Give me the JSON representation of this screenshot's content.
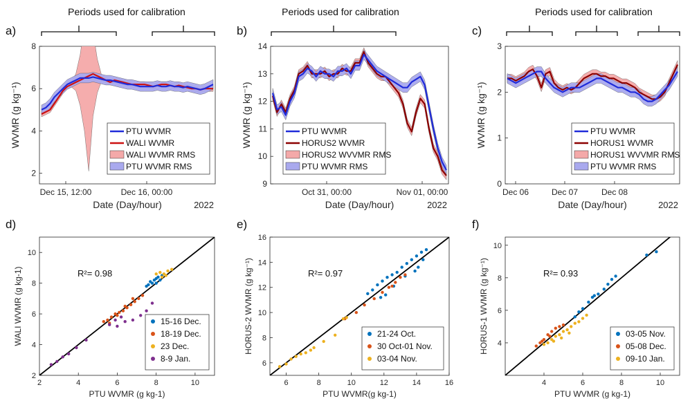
{
  "chart_data": [
    {
      "panel": "a)",
      "type": "line",
      "annotation": "Periods used for calibration",
      "ylabel": "WVMR (g kg⁻¹)",
      "xlabel": "Date (Day/hour)",
      "year": "2022",
      "ylim": [
        1.5,
        8
      ],
      "yticks": [
        "2",
        "4",
        "6",
        "8"
      ],
      "xticks": [
        "Dec 15, 12:00",
        "Dec 16, 00:00"
      ],
      "legend": [
        "PTU WVMR",
        "WALI WVMR",
        "WALI WVMR RMS",
        "PTU WVMR RMS"
      ],
      "colors": {
        "ptu": "#1f2bd9",
        "inst": "#cc1111",
        "inst_rms": "#f4a9a9",
        "ptu_rms": "#a9a9ee"
      },
      "x": [
        0,
        1,
        2,
        3,
        4,
        5,
        6,
        7,
        8,
        9,
        10,
        11,
        12,
        13,
        14,
        15,
        16,
        17,
        18,
        19,
        20,
        21,
        22,
        23,
        24,
        25,
        26,
        27,
        28,
        29,
        30,
        31,
        32,
        33,
        34,
        35,
        36,
        37,
        38,
        39,
        40
      ],
      "series": [
        {
          "name": "PTU WVMR",
          "values": [
            5.0,
            5.1,
            5.3,
            5.6,
            5.8,
            6.0,
            6.2,
            6.3,
            6.4,
            6.5,
            6.5,
            6.5,
            6.55,
            6.5,
            6.45,
            6.4,
            6.4,
            6.35,
            6.3,
            6.25,
            6.2,
            6.2,
            6.15,
            6.1,
            6.1,
            6.1,
            6.1,
            6.15,
            6.1,
            6.1,
            6.15,
            6.1,
            6.1,
            6.05,
            6.1,
            6.05,
            6.0,
            5.95,
            6.0,
            6.1,
            6.2
          ]
        },
        {
          "name": "WALI WVMR",
          "values": [
            4.8,
            4.9,
            5.0,
            5.3,
            5.6,
            5.9,
            6.1,
            6.2,
            6.3,
            6.4,
            6.5,
            6.6,
            6.7,
            6.6,
            6.5,
            6.4,
            6.3,
            6.4,
            6.35,
            6.3,
            6.25,
            6.2,
            6.2,
            6.2,
            6.2,
            6.15,
            6.1,
            6.15,
            6.2,
            6.2,
            6.15,
            6.1,
            6.15,
            6.1,
            6.05,
            6.0,
            6.0,
            5.95,
            6.0,
            6.0,
            6.0
          ]
        }
      ]
    },
    {
      "panel": "b)",
      "type": "line",
      "annotation": "Periods used for calibration",
      "ylabel": "WVMR (g kg⁻¹)",
      "xlabel": "Date (Day/hour)",
      "year": "2022",
      "ylim": [
        9,
        14
      ],
      "yticks": [
        "9",
        "10",
        "11",
        "12",
        "13",
        "14"
      ],
      "xticks": [
        "Oct 31, 00:00",
        "Nov 01, 00:00"
      ],
      "legend": [
        "PTU WVMR",
        "HORUS2 WVMR",
        "HORUS2 WVVMR RMS",
        "PTU WVMR RMS"
      ],
      "colors": {
        "ptu": "#1f2bd9",
        "inst": "#8b0000",
        "inst_rms": "#f4a9a9",
        "ptu_rms": "#a9a9ee"
      },
      "x": [
        0,
        1,
        2,
        3,
        4,
        5,
        6,
        7,
        8,
        9,
        10,
        11,
        12,
        13,
        14,
        15,
        16,
        17,
        18,
        19,
        20,
        21,
        22,
        23,
        24,
        25,
        26,
        27,
        28,
        29,
        30,
        31,
        32,
        33,
        34,
        35,
        36,
        37,
        38,
        39,
        40
      ],
      "series": [
        {
          "name": "PTU WVMR",
          "values": [
            12.3,
            11.7,
            11.8,
            11.5,
            12.0,
            12.3,
            12.9,
            13.0,
            13.2,
            13.1,
            12.9,
            13.1,
            13.0,
            13.0,
            12.9,
            13.1,
            13.1,
            13.2,
            13.0,
            13.3,
            13.3,
            13.7,
            13.5,
            13.3,
            13.1,
            13.0,
            12.9,
            12.8,
            12.7,
            12.6,
            12.5,
            12.5,
            12.7,
            12.8,
            12.9,
            12.6,
            11.8,
            11.0,
            10.3,
            9.8,
            9.5
          ]
        },
        {
          "name": "HORUS2 WVMR",
          "values": [
            12.2,
            11.6,
            11.9,
            11.6,
            12.1,
            12.4,
            13.0,
            13.1,
            13.3,
            13.0,
            13.0,
            13.0,
            13.1,
            12.9,
            13.0,
            13.0,
            13.2,
            13.1,
            13.1,
            13.4,
            13.4,
            13.8,
            13.4,
            13.2,
            13.0,
            12.9,
            12.9,
            12.7,
            12.5,
            12.3,
            11.9,
            11.2,
            10.9,
            11.6,
            12.1,
            11.9,
            11.0,
            10.3,
            10.0,
            9.5,
            9.3
          ]
        }
      ]
    },
    {
      "panel": "c)",
      "type": "line",
      "annotation": "Periods used for calibration",
      "ylabel": "WVMR (g kg⁻¹)",
      "xlabel": "Date (Day/hour)",
      "year": "2022",
      "ylim": [
        0,
        3
      ],
      "yticks": [
        "0",
        "1",
        "2",
        "3"
      ],
      "xticks": [
        "Dec 06",
        "Dec 07",
        "Dec 08"
      ],
      "legend": [
        "PTU WVMR",
        "HORUS1 WVMR",
        "HORUS1 WVVMR RMS",
        "PTU WVMR RMS"
      ],
      "colors": {
        "ptu": "#1f2bd9",
        "inst": "#8b0000",
        "inst_rms": "#f4a9a9",
        "ptu_rms": "#a9a9ee"
      },
      "x": [
        0,
        1,
        2,
        3,
        4,
        5,
        6,
        7,
        8,
        9,
        10,
        11,
        12,
        13,
        14,
        15,
        16,
        17,
        18,
        19,
        20,
        21,
        22,
        23,
        24,
        25,
        26,
        27,
        28,
        29,
        30,
        31,
        32,
        33,
        34,
        35,
        36,
        37,
        38,
        39,
        40
      ],
      "series": [
        {
          "name": "PTU WVMR",
          "values": [
            2.3,
            2.25,
            2.2,
            2.25,
            2.3,
            2.35,
            2.4,
            2.45,
            2.45,
            2.3,
            2.2,
            2.1,
            2.05,
            2.0,
            2.05,
            2.1,
            2.1,
            2.1,
            2.15,
            2.2,
            2.25,
            2.3,
            2.3,
            2.25,
            2.2,
            2.15,
            2.1,
            2.1,
            2.05,
            2.0,
            2.0,
            1.95,
            1.85,
            1.8,
            1.8,
            1.85,
            1.95,
            2.05,
            2.15,
            2.3,
            2.45
          ]
        },
        {
          "name": "HORUS1 WVMR",
          "values": [
            2.3,
            2.3,
            2.25,
            2.3,
            2.35,
            2.45,
            2.5,
            2.35,
            2.1,
            2.4,
            2.45,
            2.2,
            2.1,
            2.05,
            2.1,
            2.05,
            2.1,
            2.2,
            2.3,
            2.35,
            2.4,
            2.4,
            2.35,
            2.35,
            2.3,
            2.3,
            2.25,
            2.2,
            2.2,
            2.15,
            2.1,
            2.0,
            1.95,
            1.9,
            1.85,
            1.85,
            1.9,
            2.0,
            2.2,
            2.4,
            2.6
          ]
        }
      ]
    },
    {
      "panel": "d)",
      "type": "scatter",
      "r2": "R²= 0.98",
      "xlabel": "PTU WVMR (g kg-1)",
      "ylabel": "WALI WVMR (g kg-1)",
      "xlim": [
        2,
        11
      ],
      "ylim": [
        2,
        11
      ],
      "xticks": [
        "2",
        "4",
        "6",
        "8",
        "10"
      ],
      "yticks": [
        "2",
        "4",
        "6",
        "8",
        "10"
      ],
      "series": [
        {
          "name": "15-16 Dec.",
          "color": "#0072bd",
          "points": [
            [
              7.6,
              7.9
            ],
            [
              7.8,
              8.0
            ],
            [
              7.9,
              8.2
            ],
            [
              8.0,
              8.3
            ],
            [
              8.1,
              8.4
            ],
            [
              8.2,
              8.2
            ],
            [
              7.7,
              8.1
            ],
            [
              8.3,
              8.5
            ],
            [
              8.0,
              8.0
            ],
            [
              7.5,
              7.8
            ]
          ]
        },
        {
          "name": "18-19 Dec.",
          "color": "#d95319",
          "points": [
            [
              5.3,
              5.5
            ],
            [
              5.5,
              5.6
            ],
            [
              5.7,
              5.8
            ],
            [
              5.9,
              6.0
            ],
            [
              6.1,
              6.1
            ],
            [
              6.3,
              6.2
            ],
            [
              6.5,
              6.4
            ],
            [
              6.7,
              6.6
            ],
            [
              6.9,
              6.8
            ],
            [
              7.1,
              7.0
            ],
            [
              7.3,
              7.2
            ],
            [
              5.6,
              5.4
            ],
            [
              6.0,
              5.9
            ],
            [
              6.4,
              6.5
            ],
            [
              6.8,
              7.0
            ]
          ]
        },
        {
          "name": "23 Dec.",
          "color": "#edb120",
          "points": [
            [
              8.0,
              8.6
            ],
            [
              8.2,
              8.7
            ],
            [
              8.4,
              8.6
            ],
            [
              8.6,
              8.8
            ],
            [
              8.8,
              8.9
            ],
            [
              8.3,
              8.4
            ],
            [
              8.5,
              8.5
            ]
          ]
        },
        {
          "name": "8-9 Jan.",
          "color": "#7e2f8e",
          "points": [
            [
              2.6,
              2.7
            ],
            [
              2.9,
              2.9
            ],
            [
              3.2,
              3.2
            ],
            [
              3.5,
              3.4
            ],
            [
              3.9,
              3.8
            ],
            [
              4.4,
              4.3
            ],
            [
              5.6,
              5.3
            ],
            [
              6.0,
              5.2
            ],
            [
              6.4,
              5.5
            ],
            [
              6.8,
              5.6
            ],
            [
              7.2,
              5.9
            ],
            [
              7.5,
              6.2
            ],
            [
              7.8,
              6.7
            ],
            [
              6.2,
              5.8
            ],
            [
              5.9,
              5.6
            ]
          ]
        }
      ]
    },
    {
      "panel": "e)",
      "type": "scatter",
      "r2": "R²= 0.97",
      "xlabel": "PTU WVMR(g kg-1)",
      "ylabel": "HORUS-2 WVMR (g kg⁻¹)",
      "xlim": [
        5,
        16
      ],
      "ylim": [
        5,
        16
      ],
      "xticks": [
        "6",
        "8",
        "10",
        "12",
        "14",
        "16"
      ],
      "yticks": [
        "6",
        "8",
        "10",
        "12",
        "14",
        "16"
      ],
      "series": [
        {
          "name": "21-24 Oct.",
          "color": "#0072bd",
          "points": [
            [
              11.0,
              11.5
            ],
            [
              11.3,
              11.8
            ],
            [
              11.6,
              12.2
            ],
            [
              11.9,
              12.5
            ],
            [
              12.2,
              12.8
            ],
            [
              12.5,
              13.0
            ],
            [
              12.8,
              13.2
            ],
            [
              13.1,
              13.6
            ],
            [
              13.4,
              13.9
            ],
            [
              13.7,
              14.2
            ],
            [
              14.0,
              14.5
            ],
            [
              14.3,
              14.8
            ],
            [
              14.6,
              15.0
            ],
            [
              14.4,
              14.2
            ],
            [
              13.9,
              13.3
            ],
            [
              12.1,
              11.4
            ],
            [
              11.8,
              11.2
            ],
            [
              12.6,
              12.1
            ],
            [
              13.3,
              12.9
            ],
            [
              14.1,
              13.6
            ]
          ]
        },
        {
          "name": "30 Oct-01 Nov.",
          "color": "#d95319",
          "points": [
            [
              9.6,
              9.5
            ],
            [
              10.3,
              10.0
            ],
            [
              10.8,
              10.6
            ],
            [
              11.4,
              11.1
            ],
            [
              11.9,
              11.6
            ],
            [
              12.3,
              12.0
            ],
            [
              12.7,
              12.4
            ],
            [
              13.0,
              12.8
            ],
            [
              13.3,
              13.0
            ],
            [
              12.5,
              12.1
            ]
          ]
        },
        {
          "name": "03-04 Nov.",
          "color": "#edb120",
          "points": [
            [
              5.6,
              5.7
            ],
            [
              6.0,
              5.9
            ],
            [
              6.3,
              6.3
            ],
            [
              6.6,
              6.5
            ],
            [
              6.9,
              6.7
            ],
            [
              7.2,
              6.8
            ],
            [
              7.5,
              7.0
            ],
            [
              7.7,
              7.2
            ],
            [
              8.3,
              7.7
            ],
            [
              9.0,
              8.2
            ],
            [
              9.5,
              9.5
            ],
            [
              9.7,
              9.6
            ]
          ]
        }
      ]
    },
    {
      "panel": "f)",
      "type": "scatter",
      "r2": "R²= 0.93",
      "xlabel": "PTU WVMR (g kg-1)",
      "ylabel": "HORUS-1 WVMR (g kg⁻¹)",
      "xlim": [
        2,
        11
      ],
      "ylim": [
        2,
        10.5
      ],
      "xticks": [
        "4",
        "6",
        "8",
        "10"
      ],
      "yticks": [
        "4",
        "6",
        "8",
        "10"
      ],
      "series": [
        {
          "name": "03-05 Nov.",
          "color": "#0072bd",
          "points": [
            [
              5.6,
              5.6
            ],
            [
              5.8,
              5.9
            ],
            [
              6.0,
              6.1
            ],
            [
              6.3,
              6.5
            ],
            [
              6.5,
              6.8
            ],
            [
              6.8,
              7.0
            ],
            [
              7.1,
              7.3
            ],
            [
              7.3,
              7.6
            ],
            [
              7.5,
              7.9
            ],
            [
              7.7,
              8.1
            ],
            [
              9.3,
              9.4
            ],
            [
              9.8,
              9.6
            ],
            [
              6.6,
              6.9
            ]
          ]
        },
        {
          "name": "05-08 Dec.",
          "color": "#d95319",
          "points": [
            [
              3.6,
              3.8
            ],
            [
              3.8,
              4.0
            ],
            [
              4.0,
              4.2
            ],
            [
              4.2,
              4.5
            ],
            [
              4.4,
              4.7
            ],
            [
              4.6,
              4.9
            ],
            [
              4.8,
              5.0
            ],
            [
              5.0,
              5.1
            ],
            [
              4.3,
              4.4
            ],
            [
              3.9,
              4.1
            ]
          ]
        },
        {
          "name": "09-10 Jan.",
          "color": "#edb120",
          "points": [
            [
              4.0,
              3.9
            ],
            [
              4.2,
              4.0
            ],
            [
              4.4,
              4.2
            ],
            [
              4.6,
              4.4
            ],
            [
              4.8,
              4.5
            ],
            [
              5.0,
              4.7
            ],
            [
              5.2,
              4.8
            ],
            [
              5.4,
              5.0
            ],
            [
              5.6,
              5.2
            ],
            [
              5.8,
              5.3
            ],
            [
              6.0,
              5.5
            ],
            [
              6.2,
              5.7
            ],
            [
              4.5,
              4.1
            ],
            [
              4.9,
              4.3
            ],
            [
              5.3,
              4.6
            ]
          ]
        }
      ]
    }
  ]
}
